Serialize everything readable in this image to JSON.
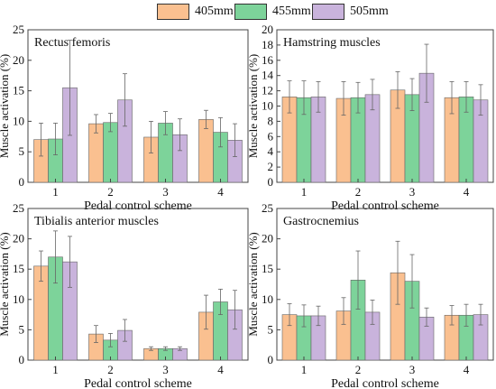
{
  "legend": [
    {
      "label": "405mm",
      "color": "#FAC090"
    },
    {
      "label": "455mm",
      "color": "#7DD39A"
    },
    {
      "label": "505mm",
      "color": "#C9B3DC"
    }
  ],
  "chart_data": [
    {
      "type": "bar",
      "title": "Rectus femoris",
      "xlabel": "Pedal control scheme",
      "ylabel": "Muscle activation (%)",
      "categories": [
        "1",
        "2",
        "3",
        "4"
      ],
      "ylim": [
        0,
        25
      ],
      "yticks": [
        0,
        5,
        10,
        15,
        20,
        25
      ],
      "series": [
        {
          "name": "405mm",
          "values": [
            7.0,
            9.6,
            7.4,
            10.3
          ],
          "errors": [
            2.7,
            1.5,
            2.6,
            1.5
          ]
        },
        {
          "name": "455mm",
          "values": [
            7.1,
            9.8,
            9.7,
            8.2
          ],
          "errors": [
            2.6,
            1.5,
            1.9,
            2.4
          ]
        },
        {
          "name": "505mm",
          "values": [
            15.5,
            13.5,
            7.8,
            6.9
          ],
          "errors": [
            7.8,
            4.3,
            2.6,
            2.7
          ]
        }
      ]
    },
    {
      "type": "bar",
      "title": "Hamstring muscles",
      "xlabel": "Pedal control scheme",
      "ylabel": "Muscle activation (%)",
      "categories": [
        "1",
        "2",
        "3",
        "4"
      ],
      "ylim": [
        0,
        20
      ],
      "yticks": [
        0,
        2,
        4,
        6,
        8,
        10,
        12,
        14,
        16,
        18,
        20
      ],
      "series": [
        {
          "name": "405mm",
          "values": [
            11.2,
            11.0,
            12.1,
            11.1
          ],
          "errors": [
            2.1,
            2.2,
            2.4,
            2.1
          ]
        },
        {
          "name": "455mm",
          "values": [
            11.1,
            11.1,
            11.5,
            11.2
          ],
          "errors": [
            2.2,
            2.0,
            2.1,
            2.0
          ]
        },
        {
          "name": "505mm",
          "values": [
            11.2,
            11.5,
            14.3,
            10.8
          ],
          "errors": [
            2.0,
            2.0,
            3.8,
            2.0
          ]
        }
      ]
    },
    {
      "type": "bar",
      "title": "Tibialis anterior muscles",
      "xlabel": "Pedal control scheme",
      "ylabel": "Muscle activation (%)",
      "categories": [
        "1",
        "2",
        "3",
        "4"
      ],
      "ylim": [
        0,
        25
      ],
      "yticks": [
        0,
        5,
        10,
        15,
        20,
        25
      ],
      "series": [
        {
          "name": "405mm",
          "values": [
            15.5,
            4.3,
            1.9,
            7.9
          ],
          "errors": [
            2.5,
            1.4,
            0.3,
            2.8
          ]
        },
        {
          "name": "455mm",
          "values": [
            17.0,
            3.3,
            1.9,
            9.6
          ],
          "errors": [
            4.3,
            1.1,
            0.3,
            2.1
          ]
        },
        {
          "name": "505mm",
          "values": [
            16.2,
            4.9,
            1.9,
            8.3
          ],
          "errors": [
            4.2,
            1.8,
            0.3,
            3.2
          ]
        }
      ]
    },
    {
      "type": "bar",
      "title": "Gastrocnemius",
      "xlabel": "Pedal control scheme",
      "ylabel": "Muscle activation (%)",
      "categories": [
        "1",
        "2",
        "3",
        "4"
      ],
      "ylim": [
        0,
        25
      ],
      "yticks": [
        0,
        5,
        10,
        15,
        20,
        25
      ],
      "series": [
        {
          "name": "405mm",
          "values": [
            7.5,
            8.1,
            14.4,
            7.4
          ],
          "errors": [
            1.8,
            2.2,
            5.2,
            1.6
          ]
        },
        {
          "name": "455mm",
          "values": [
            7.3,
            13.2,
            13.0,
            7.4
          ],
          "errors": [
            1.8,
            4.8,
            4.4,
            1.8
          ]
        },
        {
          "name": "505mm",
          "values": [
            7.3,
            7.9,
            7.1,
            7.5
          ],
          "errors": [
            1.6,
            2.0,
            1.5,
            1.7
          ]
        }
      ]
    }
  ]
}
